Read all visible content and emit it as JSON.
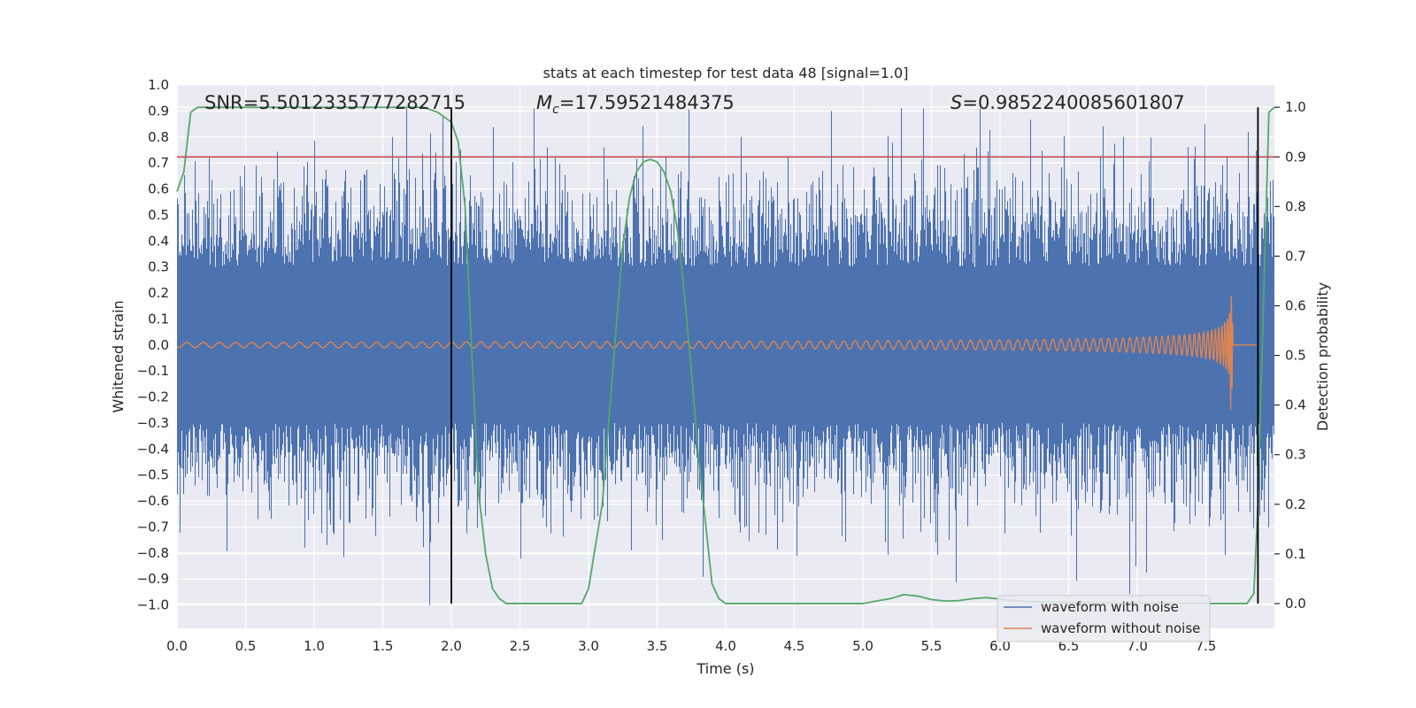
{
  "chart_data": {
    "type": "line",
    "title": "stats at each timestep for test data 48 [signal=1.0]",
    "xlabel": "Time (s)",
    "ylabel_left": "Whitened strain",
    "ylabel_right": "Detection probability",
    "xlim": [
      0.0,
      8.0
    ],
    "ylim_left": [
      -1.09,
      1.0
    ],
    "ylim_right": [
      -0.05,
      1.045
    ],
    "x_ticks": [
      "0.0",
      "0.5",
      "1.0",
      "1.5",
      "2.0",
      "2.5",
      "3.0",
      "3.5",
      "4.0",
      "4.5",
      "5.0",
      "5.5",
      "6.0",
      "6.5",
      "7.0",
      "7.5"
    ],
    "x_tick_values": [
      0.0,
      0.5,
      1.0,
      1.5,
      2.0,
      2.5,
      3.0,
      3.5,
      4.0,
      4.5,
      5.0,
      5.5,
      6.0,
      6.5,
      7.0,
      7.5
    ],
    "y_left_ticks": [
      "1.0",
      "0.9",
      "0.8",
      "0.7",
      "0.6",
      "0.5",
      "0.4",
      "0.3",
      "0.2",
      "0.1",
      "0.0",
      "−0.1",
      "−0.2",
      "−0.3",
      "−0.4",
      "−0.5",
      "−0.6",
      "−0.7",
      "−0.8",
      "−0.9",
      "−1.0"
    ],
    "y_left_tick_values": [
      1.0,
      0.9,
      0.8,
      0.7,
      0.6,
      0.5,
      0.4,
      0.3,
      0.2,
      0.1,
      0.0,
      -0.1,
      -0.2,
      -0.3,
      -0.4,
      -0.5,
      -0.6,
      -0.7,
      -0.8,
      -0.9,
      -1.0
    ],
    "y_right_ticks": [
      "1.0",
      "0.9",
      "0.8",
      "0.7",
      "0.6",
      "0.5",
      "0.4",
      "0.3",
      "0.2",
      "0.1",
      "0.0"
    ],
    "y_right_tick_values": [
      1.0,
      0.9,
      0.8,
      0.7,
      0.6,
      0.5,
      0.4,
      0.3,
      0.2,
      0.1,
      0.0
    ],
    "grid": true,
    "legend_position": "bottom-right",
    "annotations": {
      "snr": "SNR=5.5012335777282715",
      "mc_symbol": "M",
      "mc_sub": "c",
      "mc_value": "=17.59521484375",
      "s_symbol": "S",
      "s_value": "=0.9852240085601807"
    },
    "threshold_probability": 0.9,
    "vertical_lines_x": [
      2.0,
      7.88
    ],
    "series": [
      {
        "name": "waveform with noise",
        "axis": "left",
        "color": "#4c72b0",
        "envelope_typical": 0.5,
        "peak_max": 0.91,
        "peak_min": -1.0
      },
      {
        "name": "waveform without noise",
        "axis": "left",
        "color": "#dd8452",
        "x_range": [
          0.0,
          7.88
        ],
        "merger_time": 7.7,
        "amplitude_start": 0.01,
        "amplitude_peak_pos": 0.25,
        "amplitude_peak_neg": -0.3
      },
      {
        "axis": "right",
        "color": "#55a868",
        "x": [
          0.0,
          0.05,
          0.1,
          0.15,
          0.3,
          0.5,
          1.0,
          1.5,
          1.8,
          1.9,
          2.0,
          2.05,
          2.1,
          2.15,
          2.2,
          2.25,
          2.3,
          2.35,
          2.4,
          2.5,
          2.7,
          2.9,
          2.95,
          3.0,
          3.1,
          3.2,
          3.25,
          3.3,
          3.35,
          3.4,
          3.45,
          3.5,
          3.55,
          3.6,
          3.65,
          3.7,
          3.75,
          3.8,
          3.9,
          3.95,
          4.0,
          4.2,
          5.0,
          5.1,
          5.2,
          5.3,
          5.4,
          5.5,
          5.6,
          5.7,
          5.8,
          5.9,
          6.0,
          6.1,
          6.2,
          6.3,
          6.5,
          6.8,
          7.0,
          7.3,
          7.5,
          7.7,
          7.8,
          7.85,
          7.88,
          7.92,
          7.96,
          8.0
        ],
        "values": [
          0.83,
          0.87,
          0.99,
          1.0,
          1.0,
          1.0,
          1.0,
          1.0,
          1.0,
          0.99,
          0.97,
          0.93,
          0.8,
          0.5,
          0.22,
          0.1,
          0.03,
          0.01,
          0.0,
          0.0,
          0.0,
          0.0,
          0.0,
          0.03,
          0.2,
          0.55,
          0.72,
          0.82,
          0.87,
          0.89,
          0.895,
          0.89,
          0.87,
          0.83,
          0.75,
          0.62,
          0.47,
          0.3,
          0.04,
          0.01,
          0.0,
          0.0,
          0.0,
          0.005,
          0.01,
          0.018,
          0.015,
          0.008,
          0.005,
          0.006,
          0.01,
          0.012,
          0.009,
          0.006,
          0.004,
          0.003,
          0.002,
          0.001,
          0.001,
          0.0,
          0.0,
          0.0,
          0.0,
          0.02,
          0.2,
          0.6,
          0.99,
          1.0
        ]
      }
    ]
  }
}
